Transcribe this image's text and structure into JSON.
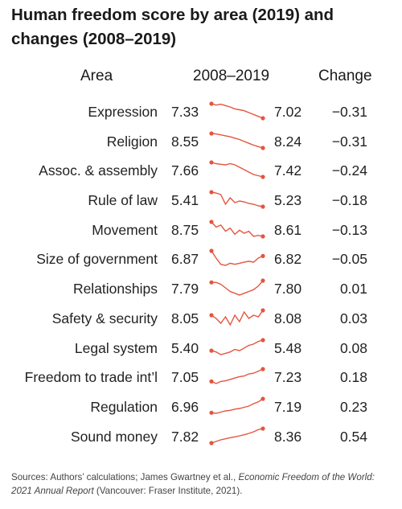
{
  "title": "Human freedom score by area (2019) and changes (2008–2019)",
  "headers": {
    "area": "Area",
    "range": "2008–2019",
    "change": "Change"
  },
  "colors": {
    "spark": "#e45540",
    "text": "#222222"
  },
  "source": {
    "prefix": "Sources: Authors’ calculations; James Gwartney et al., ",
    "italic": "Economic Freedom of the World: 2021 Annual Report",
    "suffix": " (Vancouver: Fraser Institute, 2021)."
  },
  "chart_data": {
    "type": "table",
    "columns": [
      "Area",
      "2008–2019",
      "Change"
    ],
    "rows": [
      {
        "area": "Expression",
        "start": "7.33",
        "end": "7.02",
        "change": "−0.31",
        "trend": [
          7.33,
          7.3,
          7.32,
          7.29,
          7.26,
          7.22,
          7.2,
          7.18,
          7.14,
          7.1,
          7.06,
          7.02
        ]
      },
      {
        "area": "Religion",
        "start": "8.55",
        "end": "8.24",
        "change": "−0.31",
        "trend": [
          8.55,
          8.54,
          8.52,
          8.5,
          8.48,
          8.45,
          8.42,
          8.38,
          8.34,
          8.3,
          8.27,
          8.24
        ]
      },
      {
        "area": "Assoc. & assembly",
        "start": "7.66",
        "end": "7.42",
        "change": "−0.24",
        "trend": [
          7.66,
          7.64,
          7.63,
          7.62,
          7.64,
          7.62,
          7.58,
          7.54,
          7.5,
          7.46,
          7.44,
          7.42
        ]
      },
      {
        "area": "Rule of law",
        "start": "5.41",
        "end": "5.23",
        "change": "−0.18",
        "trend": [
          5.41,
          5.4,
          5.38,
          5.26,
          5.34,
          5.28,
          5.3,
          5.29,
          5.27,
          5.26,
          5.24,
          5.23
        ]
      },
      {
        "area": "Movement",
        "start": "8.75",
        "end": "8.61",
        "change": "−0.13",
        "trend": [
          8.75,
          8.7,
          8.72,
          8.66,
          8.69,
          8.63,
          8.67,
          8.64,
          8.66,
          8.61,
          8.62,
          8.61
        ]
      },
      {
        "area": "Size of government",
        "start": "6.87",
        "end": "6.82",
        "change": "−0.05",
        "trend": [
          6.87,
          6.8,
          6.74,
          6.73,
          6.75,
          6.74,
          6.75,
          6.76,
          6.77,
          6.76,
          6.8,
          6.82
        ]
      },
      {
        "area": "Relationships",
        "start": "7.79",
        "end": "7.80",
        "change": "0.01",
        "trend": [
          7.79,
          7.79,
          7.78,
          7.76,
          7.74,
          7.73,
          7.72,
          7.73,
          7.74,
          7.75,
          7.77,
          7.8
        ]
      },
      {
        "area": "Safety & security",
        "start": "8.05",
        "end": "8.08",
        "change": "0.03",
        "trend": [
          8.05,
          8.03,
          8.0,
          8.04,
          7.99,
          8.05,
          8.01,
          8.07,
          8.03,
          8.05,
          8.04,
          8.08
        ]
      },
      {
        "area": "Legal system",
        "start": "5.40",
        "end": "5.48",
        "change": "0.08",
        "trend": [
          5.4,
          5.39,
          5.37,
          5.38,
          5.39,
          5.41,
          5.4,
          5.42,
          5.44,
          5.45,
          5.47,
          5.48
        ]
      },
      {
        "area": "Freedom to trade int’l",
        "start": "7.05",
        "end": "7.23",
        "change": "0.18",
        "trend": [
          7.05,
          7.02,
          7.05,
          7.06,
          7.08,
          7.1,
          7.12,
          7.13,
          7.16,
          7.17,
          7.2,
          7.23
        ]
      },
      {
        "area": "Regulation",
        "start": "6.96",
        "end": "7.19",
        "change": "0.23",
        "trend": [
          6.96,
          6.95,
          6.97,
          6.99,
          7.0,
          7.02,
          7.03,
          7.05,
          7.07,
          7.11,
          7.14,
          7.19
        ]
      },
      {
        "area": "Sound money",
        "start": "7.82",
        "end": "8.36",
        "change": "0.54",
        "trend": [
          7.82,
          7.88,
          7.94,
          7.98,
          8.02,
          8.05,
          8.09,
          8.13,
          8.18,
          8.24,
          8.32,
          8.36
        ]
      }
    ]
  }
}
